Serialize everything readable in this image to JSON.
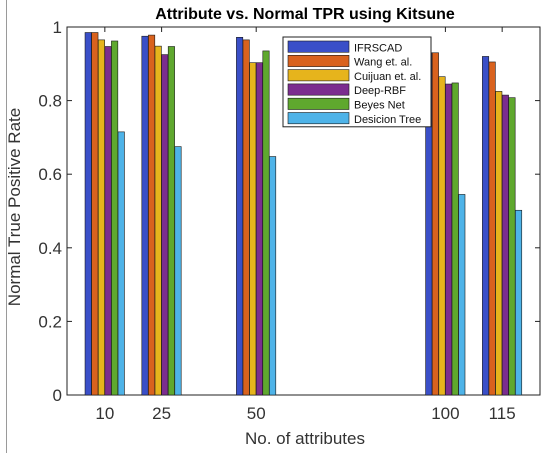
{
  "chart_data": {
    "type": "bar",
    "title": "Attribute vs. Normal TPR using Kitsune",
    "xlabel": "No. of attributes",
    "ylabel": "Normal True Positive Rate",
    "x": [
      10,
      25,
      50,
      100,
      115
    ],
    "x_tick_labels": [
      "10",
      "25",
      "50",
      "100",
      "115"
    ],
    "xlim": [
      0,
      125
    ],
    "ylim": [
      0,
      1
    ],
    "y_ticks": [
      0,
      0.2,
      0.4,
      0.6,
      0.8,
      1
    ],
    "y_tick_labels": [
      "0",
      "0.2",
      "0.4",
      "0.6",
      "0.8",
      "1"
    ],
    "grid": false,
    "legend_position": "top-right",
    "series": [
      {
        "name": "IFRSCAD",
        "color": "#3a4fc8",
        "values": [
          0.985,
          0.975,
          0.972,
          0.93,
          0.92
        ]
      },
      {
        "name": "Wang et. al.",
        "color": "#d9621e",
        "values": [
          0.985,
          0.978,
          0.965,
          0.93,
          0.905
        ]
      },
      {
        "name": "Cuijuan et. al.",
        "color": "#e6b41c",
        "values": [
          0.965,
          0.948,
          0.903,
          0.865,
          0.825
        ]
      },
      {
        "name": "Deep-RBF",
        "color": "#7b2d8f",
        "values": [
          0.947,
          0.925,
          0.903,
          0.845,
          0.815
        ]
      },
      {
        "name": "Beyes Net",
        "color": "#5fa82e",
        "values": [
          0.962,
          0.947,
          0.935,
          0.848,
          0.808
        ]
      },
      {
        "name": "Desicion Tree",
        "color": "#4eb3e8",
        "values": [
          0.715,
          0.675,
          0.648,
          0.545,
          0.502
        ]
      }
    ]
  }
}
